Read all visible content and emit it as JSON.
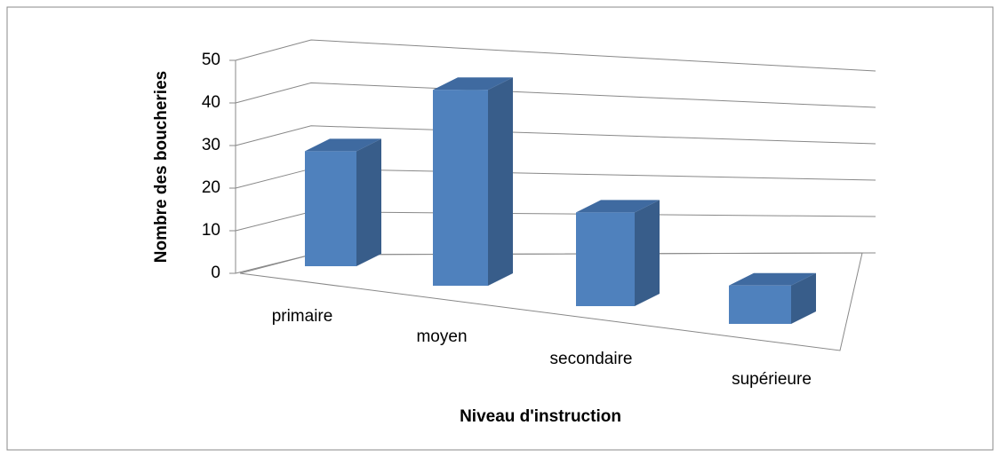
{
  "chart_data": {
    "type": "bar3d",
    "categories": [
      "primaire",
      "moyen",
      "secondaire",
      "supérieure"
    ],
    "values": [
      27,
      46,
      22,
      9
    ],
    "color": "#4f81bd",
    "x_label": "Niveau d'instruction",
    "y_label": "Nombre des boucheries",
    "ylim": [
      0,
      50
    ],
    "yticks": [
      0,
      10,
      20,
      30,
      40,
      50
    ],
    "grid": true
  }
}
